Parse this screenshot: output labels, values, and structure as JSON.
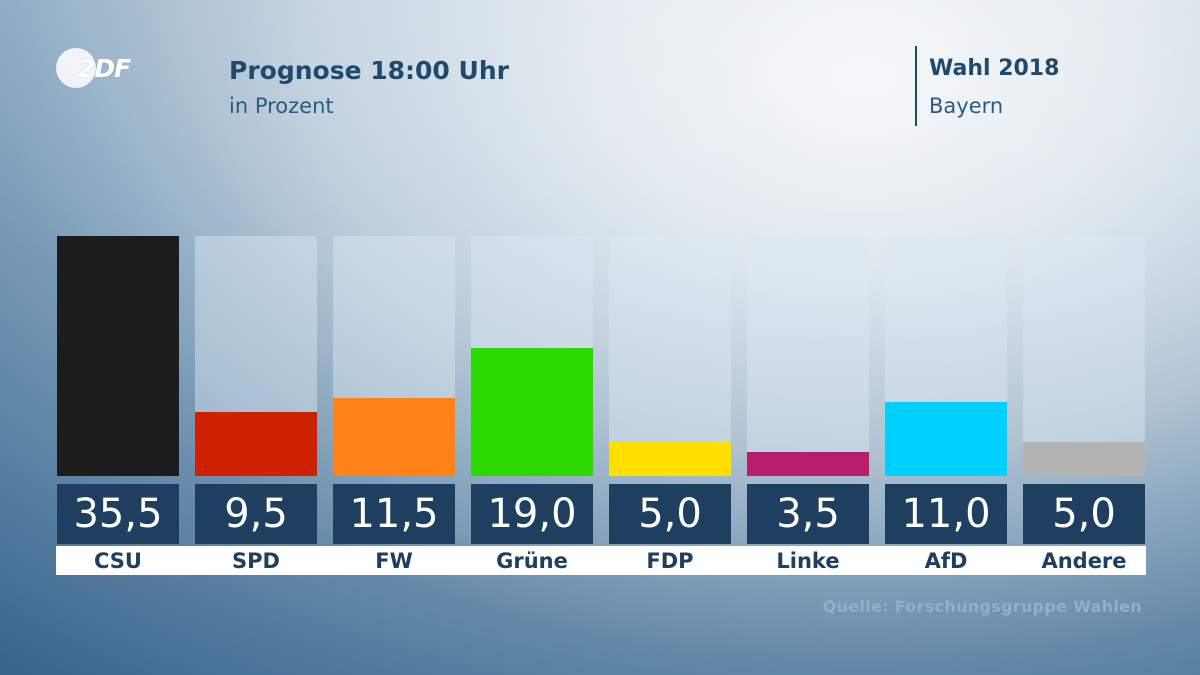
{
  "header": {
    "logo_text": "2DF",
    "title": "Prognose 18:00 Uhr",
    "subtitle": "in Prozent",
    "election": "Wahl 2018",
    "region": "Bayern"
  },
  "footer": {
    "source": "Quelle: Forschungsgruppe Wahlen"
  },
  "chart_data": {
    "type": "bar",
    "title": "Prognose 18:00 Uhr",
    "subtitle": "in Prozent",
    "xlabel": "",
    "ylabel": "in Prozent",
    "ylim": [
      0,
      35.5
    ],
    "categories": [
      "CSU",
      "SPD",
      "FW",
      "Grüne",
      "FDP",
      "Linke",
      "AfD",
      "Andere"
    ],
    "values": [
      35.5,
      9.5,
      11.5,
      19.0,
      5.0,
      3.5,
      11.0,
      5.0
    ],
    "value_labels": [
      "35,5",
      "9,5",
      "11,5",
      "19,0",
      "5,0",
      "3,5",
      "11,0",
      "5,0"
    ],
    "colors": [
      "#1c1c1c",
      "#cc2200",
      "#ff8217",
      "#2bd900",
      "#ffdf00",
      "#b81e6c",
      "#00d0ff",
      "#b3b3b3"
    ]
  }
}
